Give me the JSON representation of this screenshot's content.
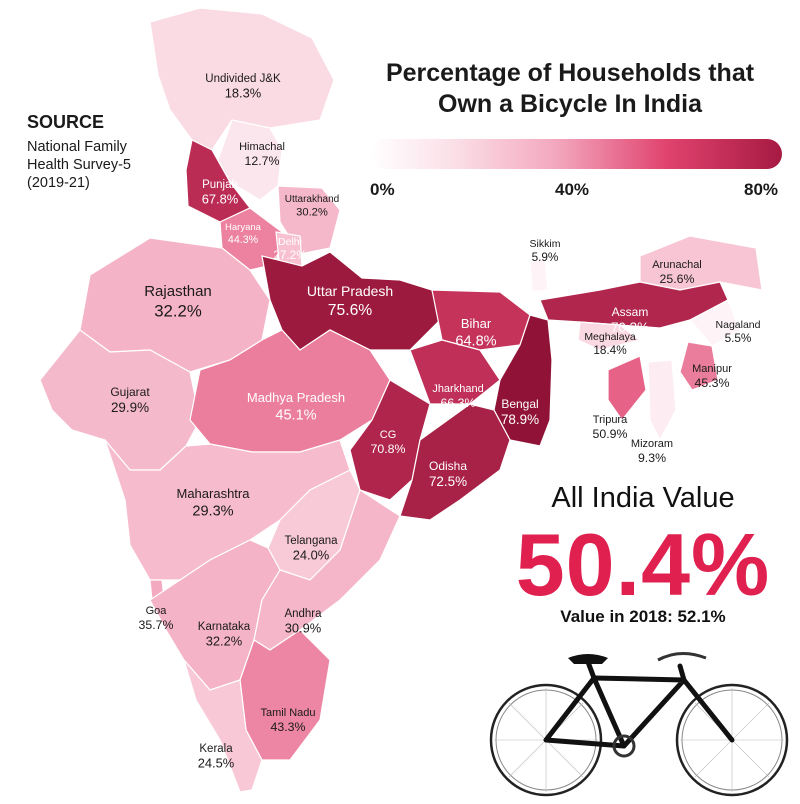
{
  "title": {
    "line1": "Percentage of Households that",
    "line2": "Own a Bicycle In India"
  },
  "legend": {
    "ticks": [
      "0%",
      "40%",
      "80%"
    ],
    "min_color": "#ffffff",
    "max_color": "#a61a42"
  },
  "source": {
    "heading": "SOURCE",
    "lines": [
      "National Family",
      "Health Survey-5",
      "(2019-21)"
    ]
  },
  "all_india": {
    "label": "All India Value",
    "value": "50.4%",
    "value_2018": "Value in 2018: 52.1%",
    "accent_color": "#e0204f"
  },
  "map_data": {
    "regions": [
      {
        "name": "Undivided J&K",
        "value": 18.3,
        "label": "18.3%"
      },
      {
        "name": "Himachal",
        "value": 12.7,
        "label": "12.7%"
      },
      {
        "name": "Punjab",
        "value": 67.8,
        "label": "67.8%"
      },
      {
        "name": "Uttarakhand",
        "value": 30.2,
        "label": "30.2%"
      },
      {
        "name": "Haryana",
        "value": 44.3,
        "label": "44.3%"
      },
      {
        "name": "Delhi",
        "value": 27.2,
        "label": "27.2%"
      },
      {
        "name": "Rajasthan",
        "value": 32.2,
        "label": "32.2%"
      },
      {
        "name": "Uttar Pradesh",
        "value": 75.6,
        "label": "75.6%"
      },
      {
        "name": "Bihar",
        "value": 64.8,
        "label": "64.8%"
      },
      {
        "name": "Sikkim",
        "value": 5.9,
        "label": "5.9%"
      },
      {
        "name": "Arunachal",
        "value": 25.6,
        "label": "25.6%"
      },
      {
        "name": "Assam",
        "value": 70.3,
        "label": "70.3%"
      },
      {
        "name": "Meghalaya",
        "value": 18.4,
        "label": "18.4%"
      },
      {
        "name": "Nagaland",
        "value": 5.5,
        "label": "5.5%"
      },
      {
        "name": "Manipur",
        "value": 45.3,
        "label": "45.3%"
      },
      {
        "name": "Tripura",
        "value": 50.9,
        "label": "50.9%"
      },
      {
        "name": "Mizoram",
        "value": 9.3,
        "label": "9.3%"
      },
      {
        "name": "Gujarat",
        "value": 29.9,
        "label": "29.9%"
      },
      {
        "name": "Madhya Pradesh",
        "value": 45.1,
        "label": "45.1%"
      },
      {
        "name": "Jharkhand",
        "value": 66.3,
        "label": "66.3%"
      },
      {
        "name": "Bengal",
        "value": 78.9,
        "label": "78.9%"
      },
      {
        "name": "CG",
        "value": 70.8,
        "label": "70.8%"
      },
      {
        "name": "Odisha",
        "value": 72.5,
        "label": "72.5%"
      },
      {
        "name": "Maharashtra",
        "value": 29.3,
        "label": "29.3%"
      },
      {
        "name": "Telangana",
        "value": 24.0,
        "label": "24.0%"
      },
      {
        "name": "Goa",
        "value": 35.7,
        "label": "35.7%"
      },
      {
        "name": "Karnataka",
        "value": 32.2,
        "label": "32.2%"
      },
      {
        "name": "Andhra",
        "value": 30.9,
        "label": "30.9%"
      },
      {
        "name": "Tamil Nadu",
        "value": 43.3,
        "label": "43.3%"
      },
      {
        "name": "Kerala",
        "value": 24.5,
        "label": "24.5%"
      }
    ]
  }
}
